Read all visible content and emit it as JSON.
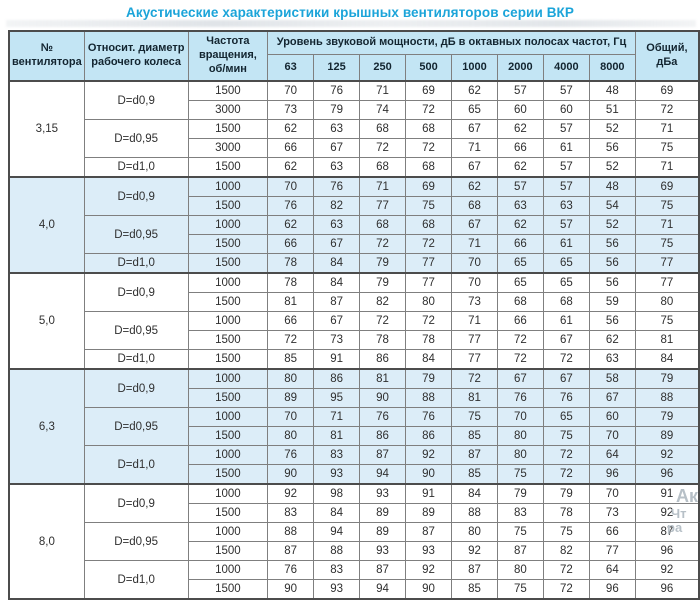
{
  "title": "Акустические характеристики крышных вентиляторов серии ВКР",
  "colors": {
    "accent_title": "#1ba4d9",
    "header_bg": "#c3e5f4",
    "shaded_band_bg": "#dcedf8",
    "row_bg": "#ffffff",
    "inner_border": "#7f7f7f",
    "outer_border": "#4c4c4c"
  },
  "table": {
    "headers": {
      "fan_no": "№ вентилятора",
      "rel_diameter": "Относит. диаметр рабочего колеса",
      "rpm": "Частота вращения, об/мин",
      "spl_group": "Уровень звуковой мощности, дБ в октавных полосах частот, Гц",
      "frequencies": [
        "63",
        "125",
        "250",
        "500",
        "1000",
        "2000",
        "4000",
        "8000"
      ],
      "total": "Общий, дБа"
    },
    "groups": [
      {
        "fan": "3,15",
        "shaded": false,
        "diameters": [
          {
            "label": "D=d0,9",
            "rows": [
              {
                "rpm": "1500",
                "levels": [
                  70,
                  76,
                  71,
                  69,
                  62,
                  57,
                  57,
                  48
                ],
                "total": 69
              },
              {
                "rpm": "3000",
                "levels": [
                  73,
                  79,
                  74,
                  72,
                  65,
                  60,
                  60,
                  51
                ],
                "total": 72
              }
            ]
          },
          {
            "label": "D=d0,95",
            "rows": [
              {
                "rpm": "1500",
                "levels": [
                  62,
                  63,
                  68,
                  68,
                  67,
                  62,
                  57,
                  52
                ],
                "total": 71
              },
              {
                "rpm": "3000",
                "levels": [
                  66,
                  67,
                  72,
                  72,
                  71,
                  66,
                  61,
                  56
                ],
                "total": 75
              }
            ]
          },
          {
            "label": "D=d1,0",
            "rows": [
              {
                "rpm": "1500",
                "levels": [
                  62,
                  63,
                  68,
                  68,
                  67,
                  62,
                  57,
                  52
                ],
                "total": 71
              }
            ]
          }
        ]
      },
      {
        "fan": "4,0",
        "shaded": true,
        "diameters": [
          {
            "label": "D=d0,9",
            "rows": [
              {
                "rpm": "1000",
                "levels": [
                  70,
                  76,
                  71,
                  69,
                  62,
                  57,
                  57,
                  48
                ],
                "total": 69
              },
              {
                "rpm": "1500",
                "levels": [
                  76,
                  82,
                  77,
                  75,
                  68,
                  63,
                  63,
                  54
                ],
                "total": 75
              }
            ]
          },
          {
            "label": "D=d0,95",
            "rows": [
              {
                "rpm": "1000",
                "levels": [
                  62,
                  63,
                  68,
                  68,
                  67,
                  62,
                  57,
                  52
                ],
                "total": 71
              },
              {
                "rpm": "1500",
                "levels": [
                  66,
                  67,
                  72,
                  72,
                  71,
                  66,
                  61,
                  56
                ],
                "total": 75
              }
            ]
          },
          {
            "label": "D=d1,0",
            "rows": [
              {
                "rpm": "1500",
                "levels": [
                  78,
                  84,
                  79,
                  77,
                  70,
                  65,
                  65,
                  56
                ],
                "total": 77
              }
            ]
          }
        ]
      },
      {
        "fan": "5,0",
        "shaded": false,
        "diameters": [
          {
            "label": "D=d0,9",
            "rows": [
              {
                "rpm": "1000",
                "levels": [
                  78,
                  84,
                  79,
                  77,
                  70,
                  65,
                  65,
                  56
                ],
                "total": 77
              },
              {
                "rpm": "1500",
                "levels": [
                  81,
                  87,
                  82,
                  80,
                  73,
                  68,
                  68,
                  59
                ],
                "total": 80
              }
            ]
          },
          {
            "label": "D=d0,95",
            "rows": [
              {
                "rpm": "1000",
                "levels": [
                  66,
                  67,
                  72,
                  72,
                  71,
                  66,
                  61,
                  56
                ],
                "total": 75
              },
              {
                "rpm": "1500",
                "levels": [
                  72,
                  73,
                  78,
                  78,
                  77,
                  72,
                  67,
                  62
                ],
                "total": 81
              }
            ]
          },
          {
            "label": "D=d1,0",
            "rows": [
              {
                "rpm": "1500",
                "levels": [
                  85,
                  91,
                  86,
                  84,
                  77,
                  72,
                  72,
                  63
                ],
                "total": 84
              }
            ]
          }
        ]
      },
      {
        "fan": "6,3",
        "shaded": true,
        "diameters": [
          {
            "label": "D=d0,9",
            "rows": [
              {
                "rpm": "1000",
                "levels": [
                  80,
                  86,
                  81,
                  79,
                  72,
                  67,
                  67,
                  58
                ],
                "total": 79
              },
              {
                "rpm": "1500",
                "levels": [
                  89,
                  95,
                  90,
                  88,
                  81,
                  76,
                  76,
                  67
                ],
                "total": 88
              }
            ]
          },
          {
            "label": "D=d0,95",
            "rows": [
              {
                "rpm": "1000",
                "levels": [
                  70,
                  71,
                  76,
                  76,
                  75,
                  70,
                  65,
                  60
                ],
                "total": 79
              },
              {
                "rpm": "1500",
                "levels": [
                  80,
                  81,
                  86,
                  86,
                  85,
                  80,
                  75,
                  70
                ],
                "total": 89
              }
            ]
          },
          {
            "label": "D=d1,0",
            "rows": [
              {
                "rpm": "1000",
                "levels": [
                  76,
                  83,
                  87,
                  92,
                  87,
                  80,
                  72,
                  64
                ],
                "total": 92
              },
              {
                "rpm": "1500",
                "levels": [
                  90,
                  93,
                  94,
                  90,
                  85,
                  75,
                  72,
                  96
                ],
                "total": 96
              }
            ]
          }
        ]
      },
      {
        "fan": "8,0",
        "shaded": false,
        "diameters": [
          {
            "label": "D=d0,9",
            "rows": [
              {
                "rpm": "1000",
                "levels": [
                  92,
                  98,
                  93,
                  91,
                  84,
                  79,
                  79,
                  70
                ],
                "total": 91
              },
              {
                "rpm": "1500",
                "levels": [
                  83,
                  84,
                  89,
                  89,
                  88,
                  83,
                  78,
                  73
                ],
                "total": 92
              }
            ]
          },
          {
            "label": "D=d0,95",
            "rows": [
              {
                "rpm": "1000",
                "levels": [
                  88,
                  94,
                  89,
                  87,
                  80,
                  75,
                  75,
                  66
                ],
                "total": 87
              },
              {
                "rpm": "1500",
                "levels": [
                  87,
                  88,
                  93,
                  93,
                  92,
                  87,
                  82,
                  77
                ],
                "total": 96
              }
            ]
          },
          {
            "label": "D=d1,0",
            "rows": [
              {
                "rpm": "1000",
                "levels": [
                  76,
                  83,
                  87,
                  92,
                  87,
                  80,
                  72,
                  64
                ],
                "total": 92
              },
              {
                "rpm": "1500",
                "levels": [
                  90,
                  93,
                  94,
                  90,
                  85,
                  75,
                  72,
                  96
                ],
                "total": 96
              }
            ]
          }
        ]
      }
    ]
  },
  "watermark": {
    "fragments": [
      {
        "text": "Ак"
      },
      {
        "text": "Чт"
      },
      {
        "text": "ра"
      }
    ]
  }
}
